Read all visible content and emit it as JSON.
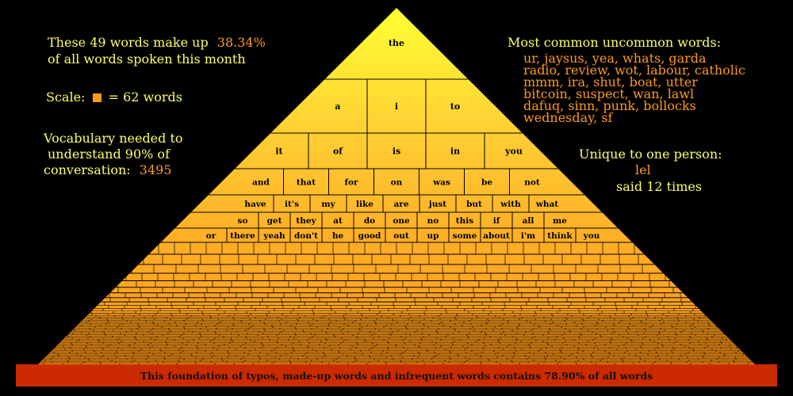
{
  "left_panel": {
    "headline_text": "These 49 words make up",
    "headline_pct": "38.34%",
    "headline_text2": "of all words spoken this month",
    "scale_label": "Scale:",
    "scale_suffix": "= 62 words",
    "vocab_line1": "Vocabulary needed to",
    "vocab_line2": "understand 90% of",
    "vocab_line3": "conversation:",
    "vocab_value": "3495"
  },
  "right_panel": {
    "uncommon_title": "Most common uncommon words:",
    "uncommon_lines": [
      "ur, jaysus, yea, whats, garda",
      "radio, review, wot, labour, catholic",
      "mmm, ira, shut, boat, utter",
      "bitcoin, suspect, wan, lawl",
      "dafuq, sinn, punk, bollocks",
      "wednesday, sf"
    ],
    "unique_title": "Unique to one person:",
    "unique_word": "lel",
    "unique_count": "said 12 times"
  },
  "pyramid": {
    "rows": [
      [
        "the"
      ],
      [
        "a",
        "i",
        "to"
      ],
      [
        "it",
        "of",
        "is",
        "in",
        "you"
      ],
      [
        "and",
        "that",
        "for",
        "on",
        "was",
        "be",
        "not"
      ],
      [
        "have",
        "it's",
        "my",
        "like",
        "are",
        "just",
        "but",
        "with",
        "what"
      ],
      [
        "so",
        "get",
        "they",
        "at",
        "do",
        "one",
        "no",
        "this",
        "if",
        "all",
        "me"
      ],
      [
        "or",
        "there",
        "yeah",
        "don't",
        "he",
        "good",
        "out",
        "up",
        "some",
        "about",
        "i'm",
        "think",
        "you"
      ]
    ],
    "foundation_text": "This foundation of typos, made-up words and infrequent words contains 78.90% of all words",
    "colors": {
      "apex": "#ffff33",
      "upper": "#ffcc33",
      "middle": "#ffaa22",
      "lower": "#ff9b1a",
      "foundation": "#cc2a00",
      "grid": "#000000"
    }
  }
}
